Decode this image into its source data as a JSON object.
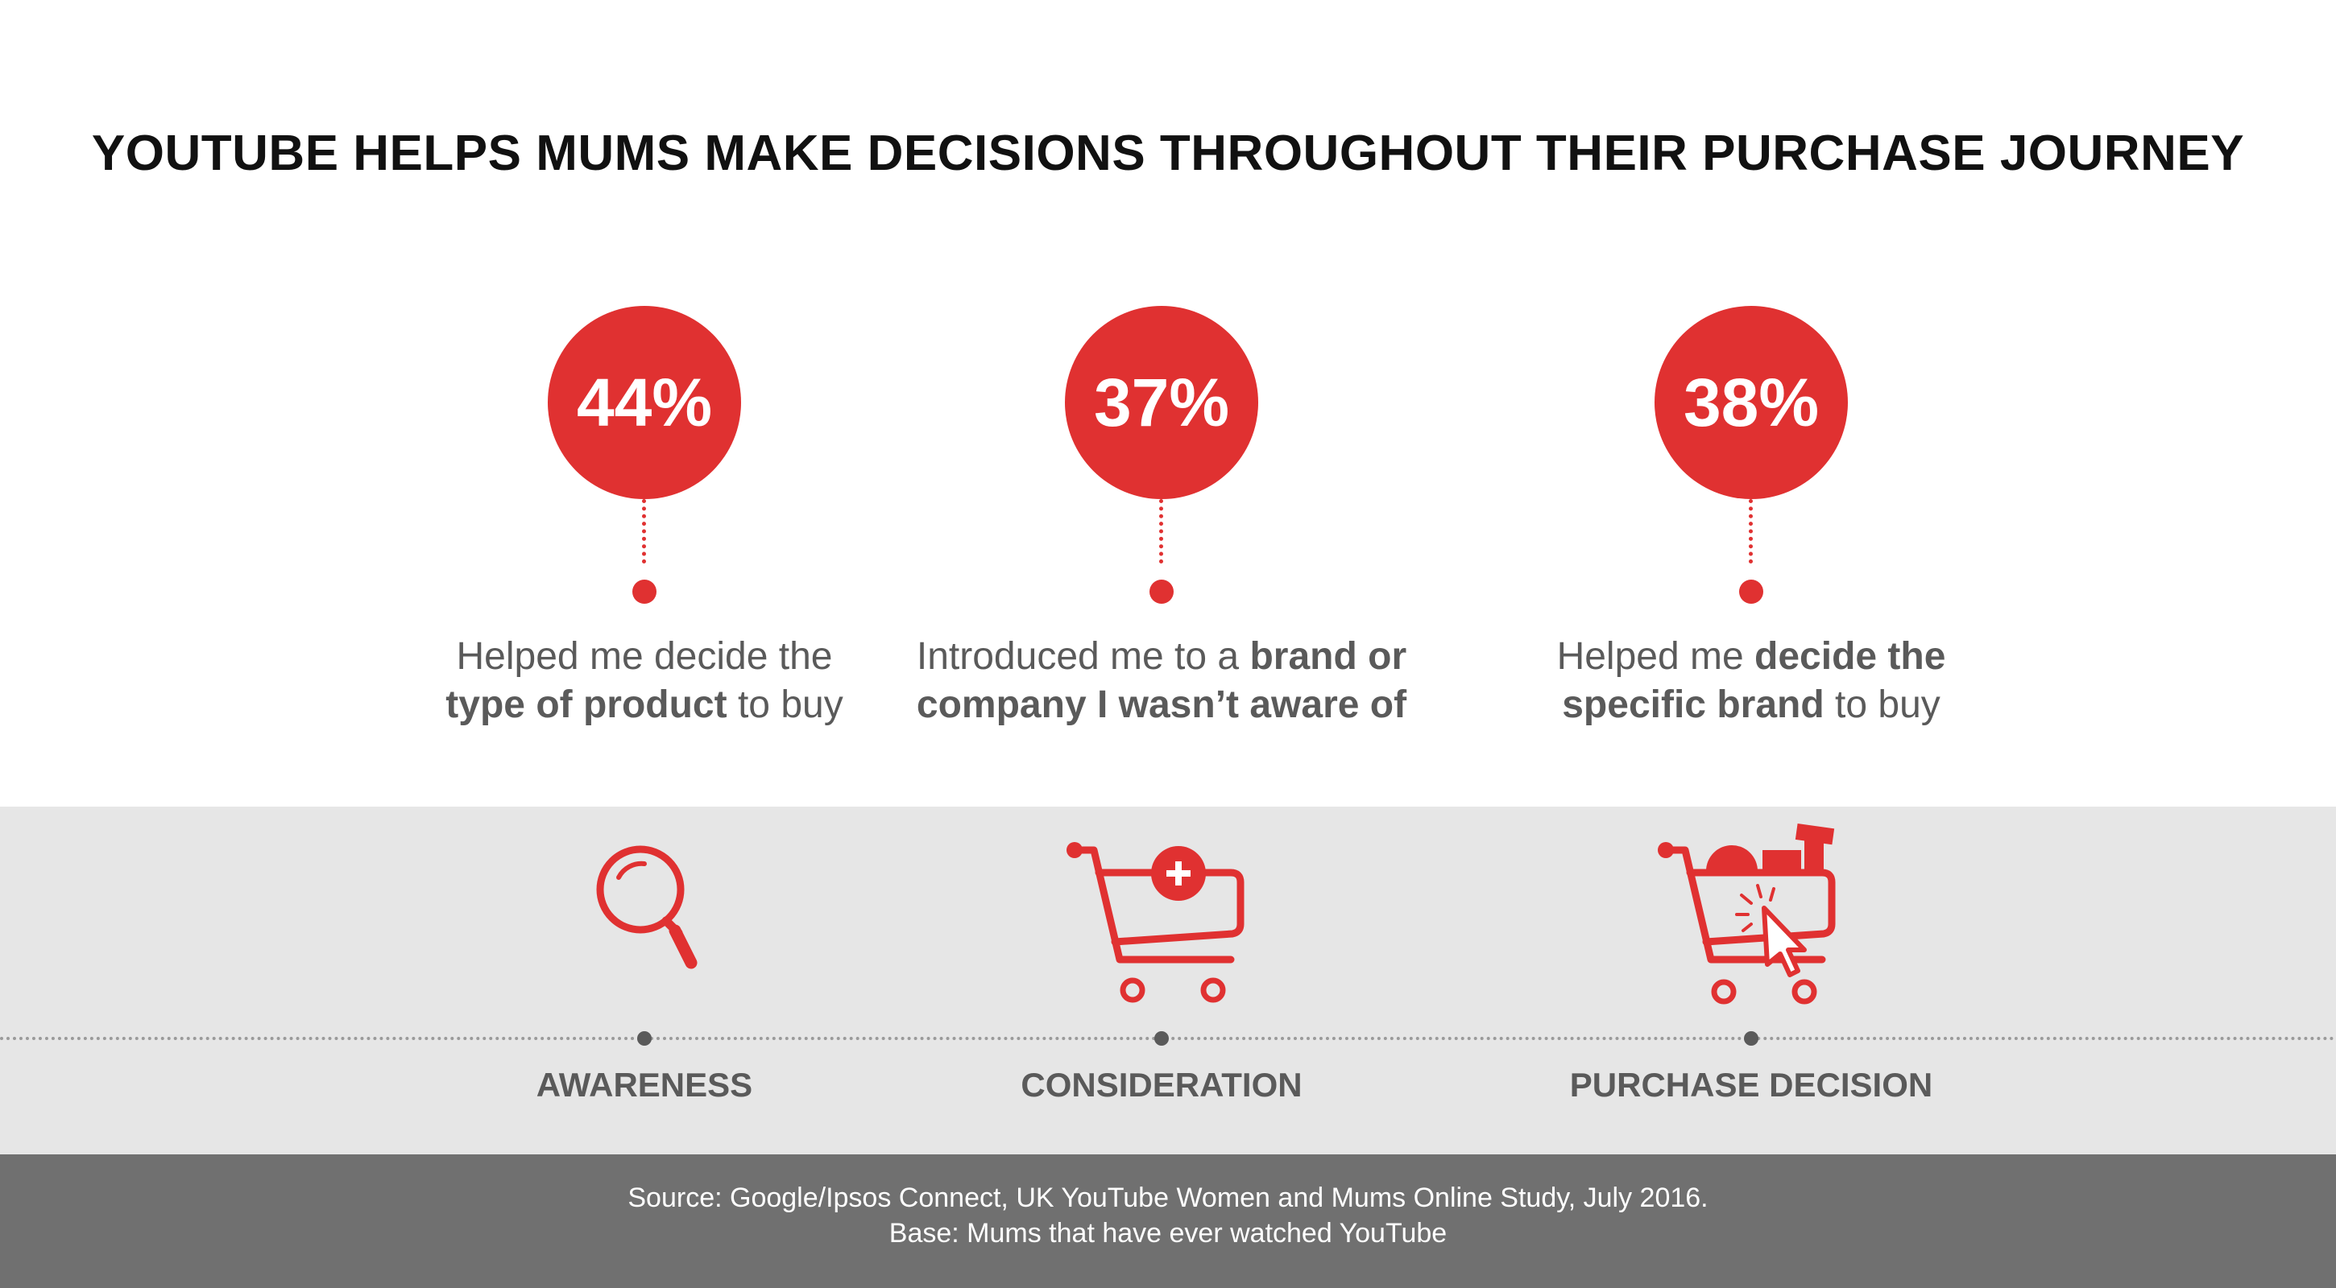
{
  "title": "YOUTUBE HELPS MUMS MAKE DECISIONS THROUGHOUT THEIR PURCHASE JOURNEY",
  "accent_color": "#e03131",
  "stats": [
    {
      "value": "44%",
      "line1": [
        {
          "text": "Helped me decide the",
          "bold": false
        }
      ],
      "line2": [
        {
          "text": "type of product",
          "bold": true
        },
        {
          "text": " to buy",
          "bold": false
        }
      ]
    },
    {
      "value": "37%",
      "line1": [
        {
          "text": "Introduced me to a ",
          "bold": false
        },
        {
          "text": "brand or",
          "bold": true
        }
      ],
      "line2": [
        {
          "text": "company I wasn’t aware of",
          "bold": true
        }
      ]
    },
    {
      "value": "38%",
      "line1": [
        {
          "text": "Helped me ",
          "bold": false
        },
        {
          "text": "decide the",
          "bold": true
        }
      ],
      "line2": [
        {
          "text": "specific brand",
          "bold": true
        },
        {
          "text": " to buy",
          "bold": false
        }
      ]
    }
  ],
  "stages": [
    {
      "label": "AWARENESS",
      "icon": "magnifier-icon"
    },
    {
      "label": "CONSIDERATION",
      "icon": "cart-plus-icon"
    },
    {
      "label": "PURCHASE DECISION",
      "icon": "cart-click-icon"
    }
  ],
  "footer": {
    "source": "Source: Google/Ipsos Connect, UK YouTube Women and Mums Online Study, July 2016.",
    "base": "Base: Mums that have ever watched YouTube"
  }
}
